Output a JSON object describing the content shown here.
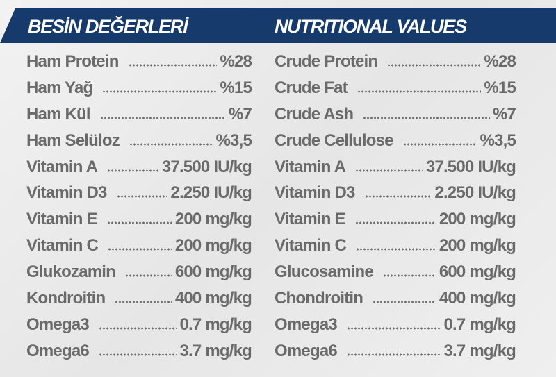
{
  "left": {
    "title": "BESİN DEĞERLERİ",
    "rows": [
      [
        "Ham Protein",
        "%28"
      ],
      [
        "Ham Yağ",
        "%15"
      ],
      [
        "Ham Kül",
        "%7"
      ],
      [
        "Ham Selüloz",
        "%3,5"
      ],
      [
        "Vitamin A",
        "37.500 IU/kg"
      ],
      [
        "Vitamin D3",
        "2.250 IU/kg"
      ],
      [
        "Vitamin E",
        "200 mg/kg"
      ],
      [
        "Vitamin C",
        "200 mg/kg"
      ],
      [
        "Glukozamin",
        "600 mg/kg"
      ],
      [
        "Kondroitin",
        "400 mg/kg"
      ],
      [
        "Omega3",
        "0.7 mg/kg"
      ],
      [
        "Omega6",
        "3.7 mg/kg"
      ]
    ]
  },
  "right": {
    "title": "NUTRITIONAL VALUES",
    "rows": [
      [
        "Crude Protein",
        "%28"
      ],
      [
        "Crude Fat",
        "%15"
      ],
      [
        "Crude Ash",
        "%7"
      ],
      [
        "Crude Cellulose",
        "%3,5"
      ],
      [
        "Vitamin A",
        "37.500 IU/kg"
      ],
      [
        "Vitamin D3",
        "2.250 IU/kg"
      ],
      [
        "Vitamin E",
        "200 mg/kg"
      ],
      [
        "Vitamin C",
        "200 mg/kg"
      ],
      [
        "Glucosamine",
        "600 mg/kg"
      ],
      [
        "Chondroitin",
        "400 mg/kg"
      ],
      [
        "Omega3",
        "0.7 mg/kg"
      ],
      [
        "Omega6",
        "3.7 mg/kg"
      ]
    ]
  }
}
